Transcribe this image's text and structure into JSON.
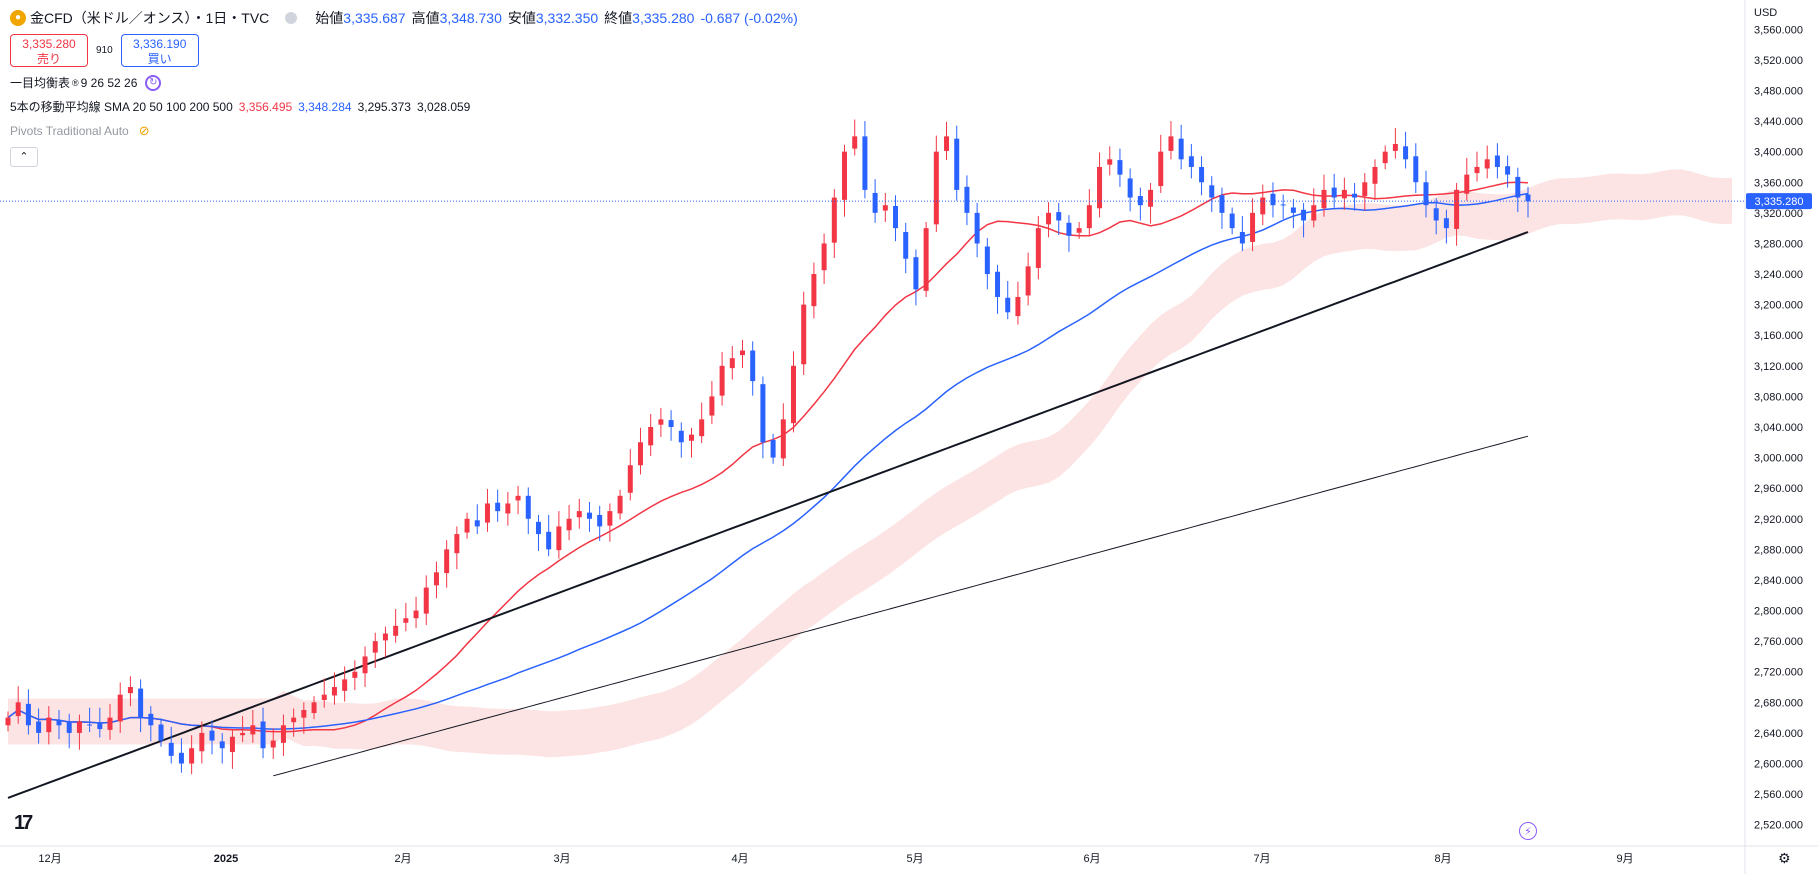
{
  "symbol": {
    "icon": "gold-coin-icon",
    "title": "金CFD（米ドル／オンス）・1日・TVC",
    "ohlc": [
      {
        "label": "始値",
        "value": "3,335.687"
      },
      {
        "label": "高値",
        "value": "3,348.730"
      },
      {
        "label": "安値",
        "value": "3,332.350"
      },
      {
        "label": "終値",
        "value": "3,335.280"
      }
    ],
    "change": "-0.687 (-0.02%)"
  },
  "trade": {
    "sell_price": "3,335.280",
    "sell_label": "売り",
    "spread": "910",
    "buy_price": "3,336.190",
    "buy_label": "買い"
  },
  "indicators": {
    "ichimoku": {
      "name": "一目均衡表",
      "params": "9 26 52 26"
    },
    "sma": {
      "name": "5本の移動平均線 SMA 20 50 100 200 500",
      "values": [
        "3,356.495",
        "3,348.284",
        "3,295.373",
        "3,028.059"
      ],
      "colors": [
        "#f23645",
        "#2962ff",
        "#131722",
        "#131722"
      ]
    },
    "pivots": {
      "name": "Pivots Traditional Auto"
    }
  },
  "toolbar": {
    "collapse": "⌃",
    "currency": "USD"
  },
  "y_axis": {
    "ticks": [
      "3,560.000",
      "3,520.000",
      "3,480.000",
      "3,440.000",
      "3,400.000",
      "3,360.000",
      "3,320.000",
      "3,280.000",
      "3,240.000",
      "3,200.000",
      "3,160.000",
      "3,120.000",
      "3,080.000",
      "3,040.000",
      "3,000.000",
      "2,960.000",
      "2,920.000",
      "2,880.000",
      "2,840.000",
      "2,800.000",
      "2,760.000",
      "2,720.000",
      "2,680.000",
      "2,640.000",
      "2,600.000",
      "2,560.000",
      "2,520.000"
    ],
    "current_price": "3,335.280"
  },
  "x_axis": {
    "ticks": [
      "12月",
      "2025",
      "2月",
      "3月",
      "4月",
      "5月",
      "6月",
      "7月",
      "8月",
      "9月"
    ]
  },
  "colors": {
    "up": "#f23645",
    "down": "#2962ff",
    "sma20": "#f23645",
    "sma50": "#2962ff",
    "sma200": "#131722",
    "sma500": "#131722",
    "cloud": "#fde4e4",
    "cloud_blue": "#e3eefc"
  },
  "chart_data": {
    "type": "candlestick",
    "ylim": [
      2500,
      3580
    ],
    "series_closes": [
      2660,
      2680,
      2650,
      2640,
      2660,
      2650,
      2640,
      2655,
      2650,
      2645,
      2660,
      2690,
      2700,
      2660,
      2650,
      2630,
      2610,
      2600,
      2620,
      2640,
      2630,
      2620,
      2635,
      2640,
      2650,
      2620,
      2630,
      2650,
      2660,
      2670,
      2680,
      2690,
      2700,
      2710,
      2720,
      2740,
      2760,
      2770,
      2780,
      2790,
      2800,
      2830,
      2850,
      2880,
      2900,
      2920,
      2910,
      2940,
      2930,
      2940,
      2950,
      2920,
      2900,
      2880,
      2910,
      2920,
      2930,
      2920,
      2910,
      2930,
      2950,
      2990,
      3020,
      3040,
      3050,
      3040,
      3020,
      3030,
      3050,
      3080,
      3120,
      3130,
      3140,
      3100,
      3020,
      3000,
      3050,
      3120,
      3200,
      3240,
      3280,
      3340,
      3400,
      3420,
      3350,
      3320,
      3330,
      3300,
      3260,
      3220,
      3300,
      3400,
      3420,
      3350,
      3320,
      3280,
      3240,
      3210,
      3190,
      3210,
      3250,
      3300,
      3320,
      3310,
      3290,
      3300,
      3330,
      3380,
      3390,
      3370,
      3340,
      3330,
      3350,
      3400,
      3420,
      3390,
      3380,
      3360,
      3340,
      3320,
      3300,
      3280,
      3320,
      3340,
      3330,
      3330,
      3320,
      3310,
      3330,
      3350,
      3340,
      3350,
      3340,
      3360,
      3380,
      3400,
      3410,
      3390,
      3360,
      3330,
      3310,
      3300,
      3350,
      3370,
      3380,
      3390,
      3380,
      3370,
      3340,
      3335
    ]
  }
}
